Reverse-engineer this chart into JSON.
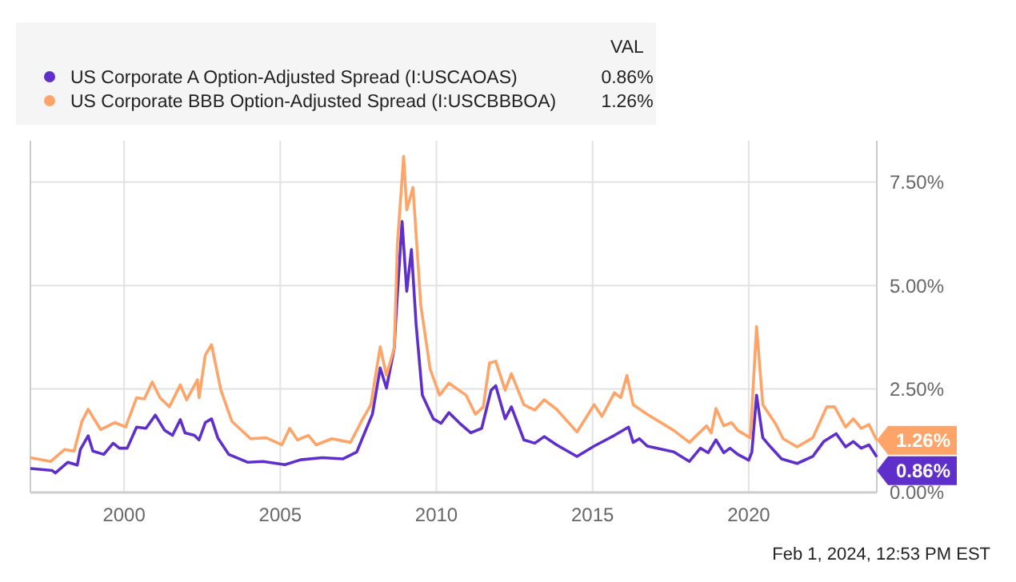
{
  "chart_data": {
    "type": "line",
    "legend_title": "VAL",
    "legend": "top left",
    "grid": true,
    "marker": "none",
    "line_style": "solid",
    "xlim": [
      1997.0,
      2024.1
    ],
    "xticks": [
      2000,
      2005,
      2010,
      2015,
      2020
    ],
    "ylim": [
      0,
      8.5
    ],
    "yticks": [
      {
        "value": 0,
        "label": "0.00%"
      },
      {
        "value": 2.5,
        "label": "2.50%"
      },
      {
        "value": 5,
        "label": "5.00%"
      },
      {
        "value": 7.5,
        "label": "7.50%"
      }
    ],
    "annotations": [
      "Feb 1, 2024, 12:53 PM EST"
    ],
    "series": [
      {
        "name": "US Corporate A Option-Adjusted Spread (I:USCAOAS)",
        "color": "#5f2fcc",
        "x": [
          1997.0,
          1997.7,
          1997.8,
          1998.2,
          1998.5,
          1998.6,
          1998.85,
          1999.0,
          1999.35,
          1999.65,
          1999.85,
          2000.1,
          2000.4,
          2000.7,
          2001.0,
          2001.3,
          2001.55,
          2001.8,
          2001.95,
          2002.25,
          2002.4,
          2002.6,
          2002.8,
          2003.0,
          2003.35,
          2003.95,
          2004.45,
          2005.15,
          2005.65,
          2006.35,
          2007.0,
          2007.45,
          2007.7,
          2007.95,
          2008.2,
          2008.4,
          2008.65,
          2008.7,
          2008.9,
          2009.05,
          2009.2,
          2009.35,
          2009.55,
          2009.9,
          2010.15,
          2010.4,
          2010.75,
          2011.1,
          2011.45,
          2011.75,
          2011.9,
          2012.2,
          2012.4,
          2012.8,
          2013.15,
          2013.45,
          2013.85,
          2014.5,
          2015.05,
          2015.7,
          2016.15,
          2016.3,
          2016.5,
          2016.75,
          2017.6,
          2018.1,
          2018.45,
          2018.7,
          2018.95,
          2019.2,
          2019.4,
          2019.65,
          2020.0,
          2020.1,
          2020.25,
          2020.45,
          2020.7,
          2021.05,
          2021.55,
          2022.05,
          2022.4,
          2022.8,
          2023.1,
          2023.35,
          2023.6,
          2023.85,
          2024.1
        ],
        "values": [
          0.58,
          0.53,
          0.47,
          0.73,
          0.66,
          1.04,
          1.37,
          1.0,
          0.92,
          1.19,
          1.07,
          1.07,
          1.58,
          1.55,
          1.87,
          1.5,
          1.38,
          1.76,
          1.44,
          1.38,
          1.27,
          1.69,
          1.78,
          1.32,
          0.92,
          0.73,
          0.75,
          0.67,
          0.79,
          0.84,
          0.81,
          0.98,
          1.44,
          1.89,
          3.01,
          2.52,
          3.49,
          4.18,
          6.55,
          4.86,
          5.87,
          4.06,
          2.35,
          1.78,
          1.67,
          1.93,
          1.67,
          1.44,
          1.55,
          2.47,
          2.58,
          1.78,
          2.07,
          1.27,
          1.19,
          1.35,
          1.15,
          0.87,
          1.12,
          1.38,
          1.58,
          1.21,
          1.3,
          1.12,
          0.98,
          0.75,
          1.07,
          0.96,
          1.27,
          0.96,
          1.07,
          0.92,
          0.78,
          0.98,
          2.35,
          1.32,
          1.1,
          0.81,
          0.7,
          0.87,
          1.23,
          1.42,
          1.1,
          1.23,
          1.07,
          1.15,
          0.86
        ],
        "value_labels": [
          null,
          null,
          null,
          null,
          null,
          null,
          null,
          null,
          null,
          null,
          null,
          null,
          null,
          null,
          null,
          null,
          null,
          null,
          null,
          null,
          null,
          null,
          null,
          null,
          null,
          null,
          null,
          null,
          null,
          null,
          null,
          null,
          null,
          null,
          null,
          null,
          null,
          null,
          null,
          null,
          null,
          null,
          null,
          null,
          null,
          null,
          null,
          null,
          null,
          null,
          null,
          null,
          null,
          null,
          null,
          null,
          null,
          null,
          null,
          null,
          null,
          null,
          null,
          null,
          null,
          null,
          null,
          null,
          null,
          null,
          null,
          null,
          null,
          null,
          null,
          null,
          null,
          null,
          null,
          null,
          null,
          null,
          null,
          null,
          null,
          null,
          "0.86%"
        ]
      },
      {
        "name": "US Corporate BBB Option-Adjusted Spread (I:USCBBBOA)",
        "color": "#ffa468",
        "x": [
          1997.0,
          1997.65,
          1998.1,
          1998.4,
          1998.65,
          1998.85,
          1999.25,
          1999.7,
          2000.05,
          2000.4,
          2000.65,
          2000.9,
          2001.15,
          2001.45,
          2001.8,
          2002.0,
          2002.35,
          2002.4,
          2002.6,
          2002.8,
          2003.1,
          2003.45,
          2004.05,
          2004.55,
          2005.05,
          2005.3,
          2005.55,
          2005.9,
          2006.15,
          2006.65,
          2007.25,
          2007.6,
          2007.9,
          2008.2,
          2008.4,
          2008.65,
          2008.75,
          2008.95,
          2009.05,
          2009.25,
          2009.5,
          2009.8,
          2010.1,
          2010.4,
          2010.95,
          2011.25,
          2011.5,
          2011.7,
          2011.9,
          2012.2,
          2012.4,
          2012.8,
          2013.15,
          2013.45,
          2013.85,
          2014.5,
          2015.05,
          2015.3,
          2015.7,
          2015.9,
          2016.1,
          2016.3,
          2016.75,
          2017.6,
          2018.1,
          2018.65,
          2018.8,
          2018.95,
          2019.2,
          2019.45,
          2019.65,
          2020.05,
          2020.25,
          2020.45,
          2020.85,
          2021.1,
          2021.55,
          2022.05,
          2022.5,
          2022.75,
          2023.1,
          2023.35,
          2023.6,
          2023.85,
          2024.1
        ],
        "values": [
          0.84,
          0.75,
          1.04,
          1.0,
          1.72,
          2.01,
          1.52,
          1.69,
          1.58,
          2.29,
          2.26,
          2.67,
          2.29,
          2.07,
          2.6,
          2.24,
          2.72,
          2.29,
          3.32,
          3.57,
          2.47,
          1.72,
          1.3,
          1.32,
          1.15,
          1.55,
          1.27,
          1.38,
          1.15,
          1.3,
          1.21,
          1.72,
          2.12,
          3.52,
          2.83,
          3.49,
          6.0,
          8.12,
          6.83,
          7.37,
          4.52,
          2.98,
          2.35,
          2.64,
          2.35,
          1.89,
          2.07,
          3.13,
          3.17,
          2.47,
          2.87,
          2.12,
          1.99,
          2.24,
          2.01,
          1.46,
          2.12,
          1.84,
          2.41,
          2.29,
          2.83,
          2.12,
          1.89,
          1.5,
          1.21,
          1.61,
          1.44,
          2.03,
          1.61,
          1.69,
          1.5,
          1.32,
          4.01,
          2.12,
          1.67,
          1.3,
          1.1,
          1.32,
          2.07,
          2.07,
          1.58,
          1.78,
          1.55,
          1.64,
          1.26
        ],
        "value_labels": [
          null,
          null,
          null,
          null,
          null,
          null,
          null,
          null,
          null,
          null,
          null,
          null,
          null,
          null,
          null,
          null,
          null,
          null,
          null,
          null,
          null,
          null,
          null,
          null,
          null,
          null,
          null,
          null,
          null,
          null,
          null,
          null,
          null,
          null,
          null,
          null,
          null,
          null,
          null,
          null,
          null,
          null,
          null,
          null,
          null,
          null,
          null,
          null,
          null,
          null,
          null,
          null,
          null,
          null,
          null,
          null,
          null,
          null,
          null,
          null,
          null,
          null,
          null,
          null,
          null,
          null,
          null,
          null,
          null,
          null,
          null,
          null,
          null,
          null,
          null,
          null,
          null,
          null,
          null,
          null,
          null,
          null,
          null,
          null,
          "1.26%"
        ]
      }
    ]
  }
}
